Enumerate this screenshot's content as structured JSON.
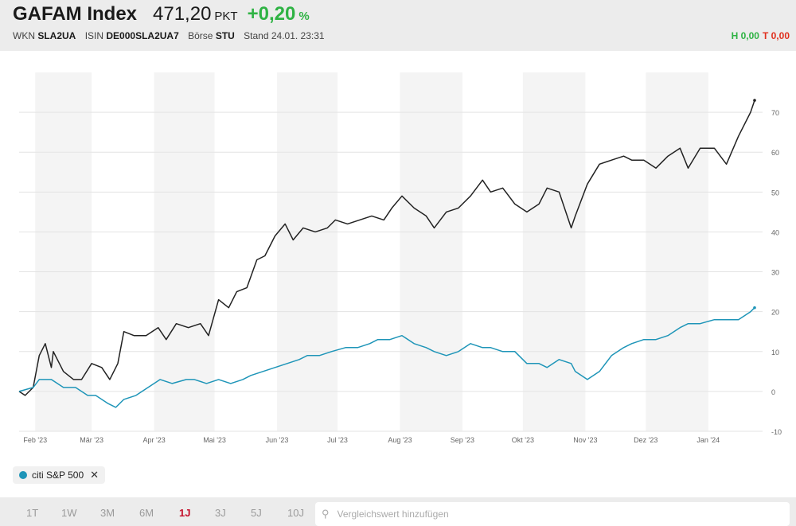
{
  "header": {
    "name": "GAFAM Index",
    "price": "471,20",
    "unit": "PKT",
    "change": "+0,20",
    "change_unit": "%",
    "wkn_label": "WKN",
    "wkn": "SLA2UA",
    "isin_label": "ISIN",
    "isin": "DE000SLA2UA7",
    "exchange_label": "Börse",
    "exchange": "STU",
    "stand": "Stand 24.01. 23:31",
    "high": "H 0,00",
    "low": "T 0,00",
    "color_up": "#2fb344",
    "color_down": "#e0301e"
  },
  "legend": {
    "label": "citi S&P 500",
    "remove_icon": "close-icon",
    "color": "#1e95b8"
  },
  "ranges": [
    "1T",
    "1W",
    "3M",
    "6M",
    "1J",
    "3J",
    "5J",
    "10J"
  ],
  "active_range": "1J",
  "compare": {
    "placeholder": "Vergleichswert hinzufügen",
    "icon": "search-icon"
  },
  "chart_data": {
    "type": "line",
    "x_labels": [
      "Feb '23",
      "Mär '23",
      "Apr '23",
      "Mai '23",
      "Jun '23",
      "Jul '23",
      "Aug '23",
      "Sep '23",
      "Okt '23",
      "Nov '23",
      "Dez '23",
      "Jan '24"
    ],
    "y_ticks": [
      -10,
      0,
      10,
      20,
      30,
      40,
      50,
      60,
      70
    ],
    "ylim": [
      -10,
      80
    ],
    "grid": true,
    "series": [
      {
        "name": "GAFAM Index",
        "color": "#222222",
        "x": [
          "2023-01-24",
          "2023-01-27",
          "2023-01-31",
          "2023-02-03",
          "2023-02-06",
          "2023-02-09",
          "2023-02-10",
          "2023-02-15",
          "2023-02-20",
          "2023-02-24",
          "2023-03-01",
          "2023-03-06",
          "2023-03-10",
          "2023-03-14",
          "2023-03-17",
          "2023-03-22",
          "2023-03-28",
          "2023-04-03",
          "2023-04-07",
          "2023-04-12",
          "2023-04-18",
          "2023-04-24",
          "2023-04-28",
          "2023-05-03",
          "2023-05-08",
          "2023-05-12",
          "2023-05-17",
          "2023-05-22",
          "2023-05-26",
          "2023-05-31",
          "2023-06-05",
          "2023-06-09",
          "2023-06-14",
          "2023-06-20",
          "2023-06-26",
          "2023-06-30",
          "2023-07-06",
          "2023-07-12",
          "2023-07-18",
          "2023-07-24",
          "2023-07-28",
          "2023-08-02",
          "2023-08-08",
          "2023-08-14",
          "2023-08-18",
          "2023-08-24",
          "2023-08-30",
          "2023-09-05",
          "2023-09-11",
          "2023-09-15",
          "2023-09-21",
          "2023-09-27",
          "2023-10-03",
          "2023-10-09",
          "2023-10-13",
          "2023-10-19",
          "2023-10-25",
          "2023-10-27",
          "2023-11-02",
          "2023-11-08",
          "2023-11-14",
          "2023-11-20",
          "2023-11-24",
          "2023-11-30",
          "2023-12-06",
          "2023-12-12",
          "2023-12-18",
          "2023-12-22",
          "2023-12-28",
          "2024-01-04",
          "2024-01-10",
          "2024-01-16",
          "2024-01-22",
          "2024-01-24"
        ],
        "values": [
          0,
          -1,
          1,
          9,
          12,
          6,
          10,
          5,
          3,
          3,
          7,
          6,
          3,
          7,
          15,
          14,
          14,
          16,
          13,
          17,
          16,
          17,
          14,
          23,
          21,
          25,
          26,
          33,
          34,
          39,
          42,
          38,
          41,
          40,
          41,
          43,
          42,
          43,
          44,
          43,
          46,
          49,
          46,
          44,
          41,
          45,
          46,
          49,
          53,
          50,
          51,
          47,
          45,
          47,
          51,
          50,
          41,
          44,
          52,
          57,
          58,
          59,
          58,
          58,
          56,
          59,
          61,
          56,
          61,
          61,
          57,
          64,
          70,
          73
        ]
      },
      {
        "name": "citi S&P 500",
        "color": "#1e95b8",
        "x": [
          "2023-01-24",
          "2023-01-31",
          "2023-02-03",
          "2023-02-09",
          "2023-02-15",
          "2023-02-21",
          "2023-02-27",
          "2023-03-03",
          "2023-03-09",
          "2023-03-13",
          "2023-03-17",
          "2023-03-23",
          "2023-03-29",
          "2023-04-04",
          "2023-04-10",
          "2023-04-17",
          "2023-04-21",
          "2023-04-27",
          "2023-05-03",
          "2023-05-09",
          "2023-05-15",
          "2023-05-19",
          "2023-05-25",
          "2023-05-31",
          "2023-06-06",
          "2023-06-12",
          "2023-06-16",
          "2023-06-22",
          "2023-06-28",
          "2023-07-05",
          "2023-07-11",
          "2023-07-17",
          "2023-07-21",
          "2023-07-27",
          "2023-08-02",
          "2023-08-08",
          "2023-08-14",
          "2023-08-18",
          "2023-08-24",
          "2023-08-30",
          "2023-09-05",
          "2023-09-11",
          "2023-09-15",
          "2023-09-21",
          "2023-09-27",
          "2023-10-03",
          "2023-10-09",
          "2023-10-13",
          "2023-10-19",
          "2023-10-25",
          "2023-10-27",
          "2023-11-02",
          "2023-11-08",
          "2023-11-14",
          "2023-11-20",
          "2023-11-24",
          "2023-11-30",
          "2023-12-06",
          "2023-12-12",
          "2023-12-18",
          "2023-12-22",
          "2023-12-28",
          "2024-01-04",
          "2024-01-10",
          "2024-01-16",
          "2024-01-22",
          "2024-01-24"
        ],
        "values": [
          0,
          1,
          3,
          3,
          1,
          1,
          -1,
          -1,
          -3,
          -4,
          -2,
          -1,
          1,
          3,
          2,
          3,
          3,
          2,
          3,
          2,
          3,
          4,
          5,
          6,
          7,
          8,
          9,
          9,
          10,
          11,
          11,
          12,
          13,
          13,
          14,
          12,
          11,
          10,
          9,
          10,
          12,
          11,
          11,
          10,
          10,
          7,
          7,
          6,
          8,
          7,
          5,
          3,
          5,
          9,
          11,
          12,
          13,
          13,
          14,
          16,
          17,
          17,
          18,
          18,
          18,
          20,
          21
        ]
      }
    ]
  }
}
